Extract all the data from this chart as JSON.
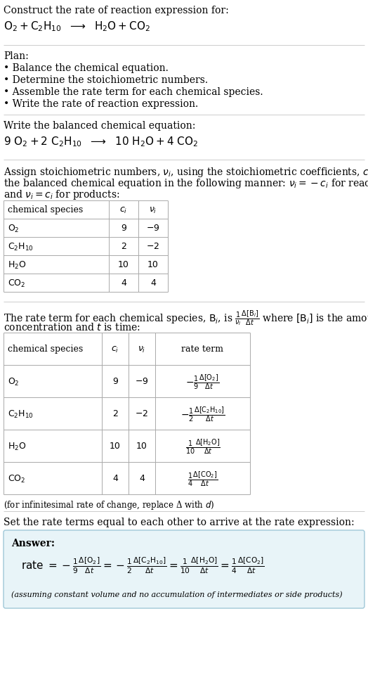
{
  "bg_color": "#ffffff",
  "text_color": "#000000",
  "title_line1": "Construct the rate of reaction expression for:",
  "plan_header": "Plan:",
  "plan_items": [
    "• Balance the chemical equation.",
    "• Determine the stoichiometric numbers.",
    "• Assemble the rate term for each chemical species.",
    "• Write the rate of reaction expression."
  ],
  "balanced_header": "Write the balanced chemical equation:",
  "assign_text1": "Assign stoichiometric numbers, $\\nu_i$, using the stoichiometric coefficients, $c_i$, from",
  "assign_text2": "the balanced chemical equation in the following manner: $\\nu_i = -c_i$ for reactants",
  "assign_text3": "and $\\nu_i = c_i$ for products:",
  "set_equal_text": "Set the rate terms equal to each other to arrive at the rate expression:",
  "answer_label": "Answer:",
  "infinitesimal_note": "(for infinitesimal rate of change, replace Δ with $d$)",
  "assuming_note": "(assuming constant volume and no accumulation of intermediates or side products)",
  "answer_box_color": "#e8f4f8",
  "answer_border_color": "#a0c8d8",
  "sep_color": "#cccccc",
  "table_border_color": "#aaaaaa"
}
